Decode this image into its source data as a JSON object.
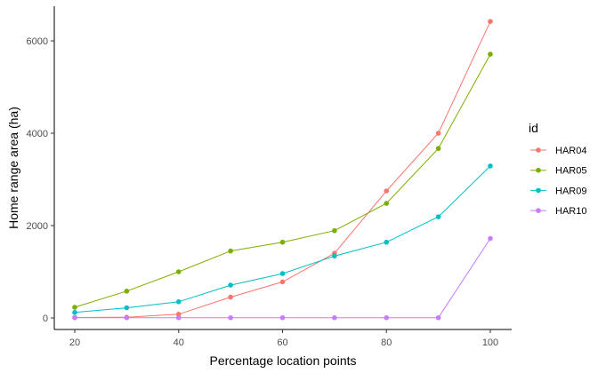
{
  "chart_data": {
    "type": "line",
    "xlabel": "Percentage location points",
    "ylabel": "Home range area (ha)",
    "x": [
      20,
      30,
      40,
      50,
      60,
      70,
      80,
      90,
      100
    ],
    "xticks": [
      "20",
      "40",
      "60",
      "80",
      "100"
    ],
    "yticks": [
      "0",
      "2000",
      "4000",
      "6000"
    ],
    "xlim": [
      20,
      100
    ],
    "ylim": [
      0,
      6400
    ],
    "grid": false,
    "legend": {
      "title": "id",
      "position": "right",
      "entries": [
        "HAR04",
        "HAR05",
        "HAR09",
        "HAR10"
      ]
    },
    "series": [
      {
        "name": "HAR04",
        "color": "#F8766D",
        "values": [
          10,
          15,
          80,
          450,
          780,
          1400,
          2750,
          4000,
          6420
        ]
      },
      {
        "name": "HAR05",
        "color": "#7CAE00",
        "values": [
          230,
          580,
          1000,
          1450,
          1640,
          1890,
          2480,
          3670,
          5710
        ]
      },
      {
        "name": "HAR09",
        "color": "#00BFC4",
        "values": [
          120,
          220,
          350,
          710,
          960,
          1340,
          1640,
          2190,
          3290
        ]
      },
      {
        "name": "HAR10",
        "color": "#C77CFF",
        "values": [
          5,
          5,
          5,
          5,
          5,
          5,
          5,
          5,
          1720
        ]
      }
    ]
  }
}
